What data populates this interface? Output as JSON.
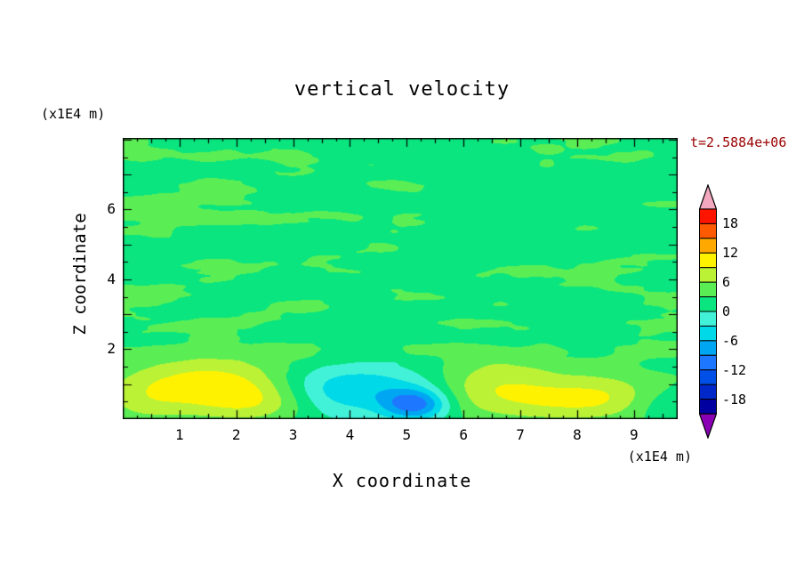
{
  "title": "vertical velocity",
  "time_label": "t=2.5884e+06",
  "time_label_color": "#990000",
  "axis_units": {
    "y_unit": "(x1E4 m)",
    "x_unit": "(x1E4 m)"
  },
  "axes": {
    "x_label": "X coordinate",
    "y_label": "Z coordinate"
  },
  "chart_data": {
    "type": "filled_contour",
    "title": "vertical velocity",
    "xlabel": "X coordinate",
    "ylabel": "Z coordinate",
    "x_unit": "(x1E4 m)",
    "y_unit": "(x1E4 m)",
    "time_annotation": "t=2.5884e+06",
    "x_range": [
      0,
      9.77
    ],
    "z_range": [
      0,
      8.05
    ],
    "x_ticks": [
      1,
      2,
      3,
      4,
      5,
      6,
      7,
      8,
      9
    ],
    "y_ticks": [
      2,
      4,
      6
    ],
    "contour_interval": 3,
    "levels": [
      -21,
      -18,
      -15,
      -12,
      -9,
      -6,
      -3,
      0,
      3,
      6,
      9,
      12,
      15,
      18,
      21
    ],
    "colors": [
      "#0000A0",
      "#0028C8",
      "#0050E8",
      "#1E78FF",
      "#00A6F2",
      "#00D9E8",
      "#42F2D8",
      "#0AE57F",
      "#5BEE54",
      "#BBF235",
      "#FFF200",
      "#FFA800",
      "#FF5A00",
      "#FF1400"
    ],
    "under_color": "#8A00B4",
    "over_color": "#F2A8BE",
    "colorbar_tick_labels": [
      "18",
      "12",
      "6",
      "0",
      "-6",
      "-12",
      "-18"
    ],
    "background_mean": 2.35,
    "background_noise_amp": [
      1.5,
      0.8,
      0.5
    ],
    "features": [
      {
        "x": 1.55,
        "z": 0.95,
        "amp": 8.5,
        "sx": 1.05,
        "sz": 0.6
      },
      {
        "x": 2.55,
        "z": 0.45,
        "amp": 4.5,
        "sx": 0.7,
        "sz": 0.4
      },
      {
        "x": 0.35,
        "z": 0.55,
        "amp": 2.5,
        "sx": 0.5,
        "sz": 0.5
      },
      {
        "x": 3.65,
        "z": 0.8,
        "amp": -7.5,
        "sx": 0.8,
        "sz": 0.55
      },
      {
        "x": 4.95,
        "z": 1.05,
        "amp": -4.0,
        "sx": 0.8,
        "sz": 0.5
      },
      {
        "x": 5.15,
        "z": 0.42,
        "amp": -12.5,
        "sx": 0.42,
        "sz": 0.33
      },
      {
        "x": 6.45,
        "z": 0.9,
        "amp": 6.5,
        "sx": 0.95,
        "sz": 0.6
      },
      {
        "x": 7.7,
        "z": 0.45,
        "amp": 3.5,
        "sx": 0.75,
        "sz": 0.4
      },
      {
        "x": 8.55,
        "z": 0.65,
        "amp": 4.5,
        "sx": 0.65,
        "sz": 0.45
      },
      {
        "x": 9.5,
        "z": 0.4,
        "amp": -2.5,
        "sx": 0.45,
        "sz": 0.35
      }
    ]
  }
}
